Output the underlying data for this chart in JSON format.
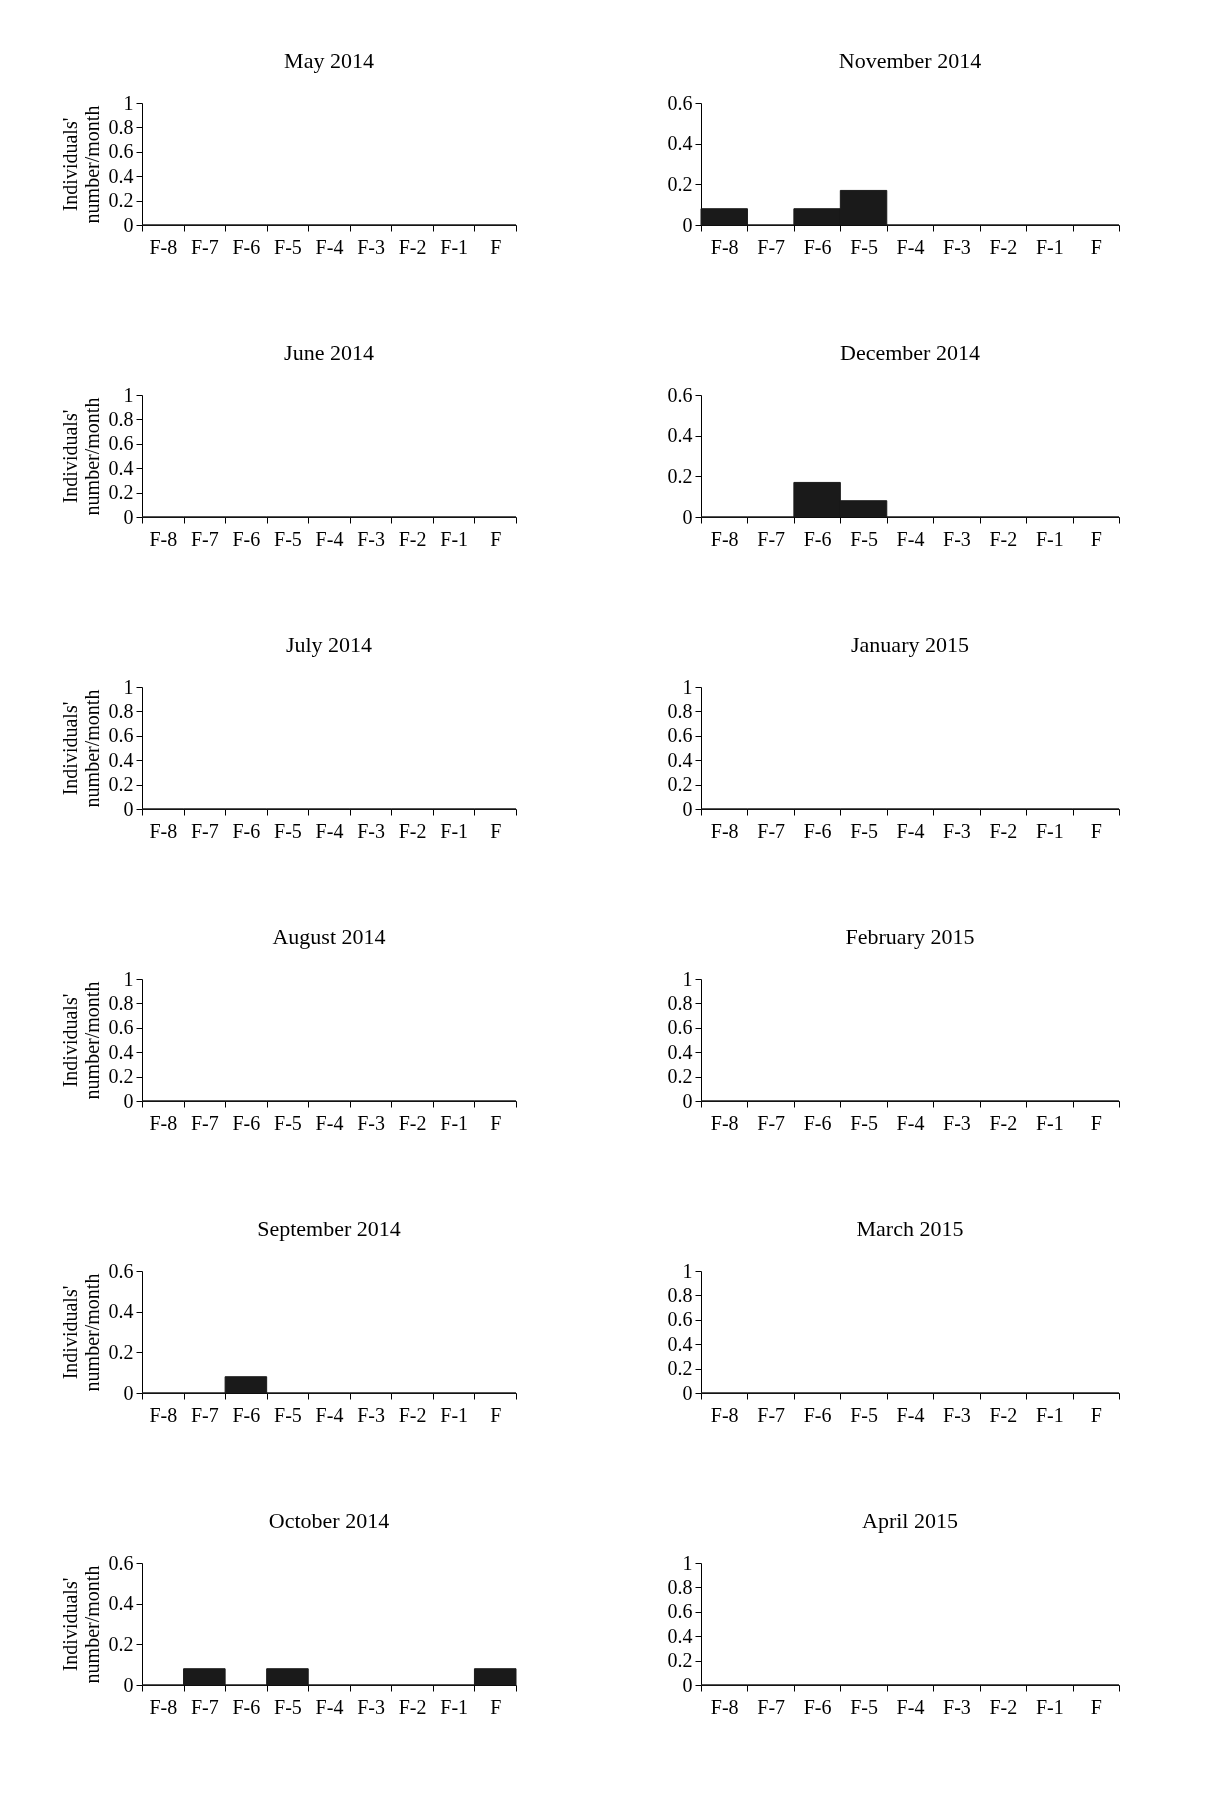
{
  "chart_data": [
    {
      "type": "bar",
      "title": "May 2014",
      "ylabel": "Individuals'\nnumber/month",
      "categories": [
        "F-8",
        "F-7",
        "F-6",
        "F-5",
        "F-4",
        "F-3",
        "F-2",
        "F-1",
        "F"
      ],
      "values": [
        0,
        0,
        0,
        0,
        0,
        0,
        0,
        0,
        0
      ],
      "color": "#1a1a1a",
      "ylim": [
        0,
        1
      ],
      "yticks": [
        0,
        0.2,
        0.4,
        0.6,
        0.8,
        1
      ],
      "grid": false
    },
    {
      "type": "bar",
      "title": "November 2014",
      "categories": [
        "F-8",
        "F-7",
        "F-6",
        "F-5",
        "F-4",
        "F-3",
        "F-2",
        "F-1",
        "F"
      ],
      "values": [
        0.08,
        0,
        0.08,
        0.17,
        0,
        0,
        0,
        0,
        0
      ],
      "color": "#1a1a1a",
      "ylim": [
        0,
        0.6
      ],
      "yticks": [
        0,
        0.2,
        0.4,
        0.6
      ],
      "grid": false
    },
    {
      "type": "bar",
      "title": "June 2014",
      "ylabel": "Individuals'\nnumber/month",
      "categories": [
        "F-8",
        "F-7",
        "F-6",
        "F-5",
        "F-4",
        "F-3",
        "F-2",
        "F-1",
        "F"
      ],
      "values": [
        0,
        0,
        0,
        0,
        0,
        0,
        0,
        0,
        0
      ],
      "color": "#1a1a1a",
      "ylim": [
        0,
        1
      ],
      "yticks": [
        0,
        0.2,
        0.4,
        0.6,
        0.8,
        1
      ],
      "grid": false
    },
    {
      "type": "bar",
      "title": "December 2014",
      "categories": [
        "F-8",
        "F-7",
        "F-6",
        "F-5",
        "F-4",
        "F-3",
        "F-2",
        "F-1",
        "F"
      ],
      "values": [
        0,
        0,
        0.17,
        0.08,
        0,
        0,
        0,
        0,
        0
      ],
      "color": "#1a1a1a",
      "ylim": [
        0,
        0.6
      ],
      "yticks": [
        0,
        0.2,
        0.4,
        0.6
      ],
      "grid": false
    },
    {
      "type": "bar",
      "title": "July 2014",
      "ylabel": "Individuals'\nnumber/month",
      "categories": [
        "F-8",
        "F-7",
        "F-6",
        "F-5",
        "F-4",
        "F-3",
        "F-2",
        "F-1",
        "F"
      ],
      "values": [
        0,
        0,
        0,
        0,
        0,
        0,
        0,
        0,
        0
      ],
      "color": "#1a1a1a",
      "ylim": [
        0,
        1
      ],
      "yticks": [
        0,
        0.2,
        0.4,
        0.6,
        0.8,
        1
      ],
      "grid": false
    },
    {
      "type": "bar",
      "title": "January 2015",
      "categories": [
        "F-8",
        "F-7",
        "F-6",
        "F-5",
        "F-4",
        "F-3",
        "F-2",
        "F-1",
        "F"
      ],
      "values": [
        0,
        0,
        0,
        0,
        0,
        0,
        0,
        0,
        0
      ],
      "color": "#1a1a1a",
      "ylim": [
        0,
        1
      ],
      "yticks": [
        0,
        0.2,
        0.4,
        0.6,
        0.8,
        1
      ],
      "grid": false
    },
    {
      "type": "bar",
      "title": "August 2014",
      "ylabel": "Individuals'\nnumber/month",
      "categories": [
        "F-8",
        "F-7",
        "F-6",
        "F-5",
        "F-4",
        "F-3",
        "F-2",
        "F-1",
        "F"
      ],
      "values": [
        0,
        0,
        0,
        0,
        0,
        0,
        0,
        0,
        0
      ],
      "color": "#1a1a1a",
      "ylim": [
        0,
        1
      ],
      "yticks": [
        0,
        0.2,
        0.4,
        0.6,
        0.8,
        1
      ],
      "grid": false
    },
    {
      "type": "bar",
      "title": "February 2015",
      "categories": [
        "F-8",
        "F-7",
        "F-6",
        "F-5",
        "F-4",
        "F-3",
        "F-2",
        "F-1",
        "F"
      ],
      "values": [
        0,
        0,
        0,
        0,
        0,
        0,
        0,
        0,
        0
      ],
      "color": "#1a1a1a",
      "ylim": [
        0,
        1
      ],
      "yticks": [
        0,
        0.2,
        0.4,
        0.6,
        0.8,
        1
      ],
      "grid": false
    },
    {
      "type": "bar",
      "title": "September 2014",
      "ylabel": "Individuals'\nnumber/month",
      "categories": [
        "F-8",
        "F-7",
        "F-6",
        "F-5",
        "F-4",
        "F-3",
        "F-2",
        "F-1",
        "F"
      ],
      "values": [
        0,
        0,
        0.08,
        0,
        0,
        0,
        0,
        0,
        0
      ],
      "color": "#1a1a1a",
      "ylim": [
        0,
        0.6
      ],
      "yticks": [
        0,
        0.2,
        0.4,
        0.6
      ],
      "grid": false
    },
    {
      "type": "bar",
      "title": "March 2015",
      "categories": [
        "F-8",
        "F-7",
        "F-6",
        "F-5",
        "F-4",
        "F-3",
        "F-2",
        "F-1",
        "F"
      ],
      "values": [
        0,
        0,
        0,
        0,
        0,
        0,
        0,
        0,
        0
      ],
      "color": "#1a1a1a",
      "ylim": [
        0,
        1
      ],
      "yticks": [
        0,
        0.2,
        0.4,
        0.6,
        0.8,
        1
      ],
      "grid": false
    },
    {
      "type": "bar",
      "title": "October 2014",
      "ylabel": "Individuals'\nnumber/month",
      "categories": [
        "F-8",
        "F-7",
        "F-6",
        "F-5",
        "F-4",
        "F-3",
        "F-2",
        "F-1",
        "F"
      ],
      "values": [
        0,
        0.08,
        0,
        0.08,
        0,
        0,
        0,
        0,
        0.08
      ],
      "color": "#1a1a1a",
      "ylim": [
        0,
        0.6
      ],
      "yticks": [
        0,
        0.2,
        0.4,
        0.6
      ],
      "grid": false
    },
    {
      "type": "bar",
      "title": "April 2015",
      "categories": [
        "F-8",
        "F-7",
        "F-6",
        "F-5",
        "F-4",
        "F-3",
        "F-2",
        "F-1",
        "F"
      ],
      "values": [
        0,
        0,
        0,
        0,
        0,
        0,
        0,
        0,
        0
      ],
      "color": "#1a1a1a",
      "ylim": [
        0,
        1
      ],
      "yticks": [
        0,
        0.2,
        0.4,
        0.6,
        0.8,
        1
      ],
      "grid": false
    }
  ]
}
